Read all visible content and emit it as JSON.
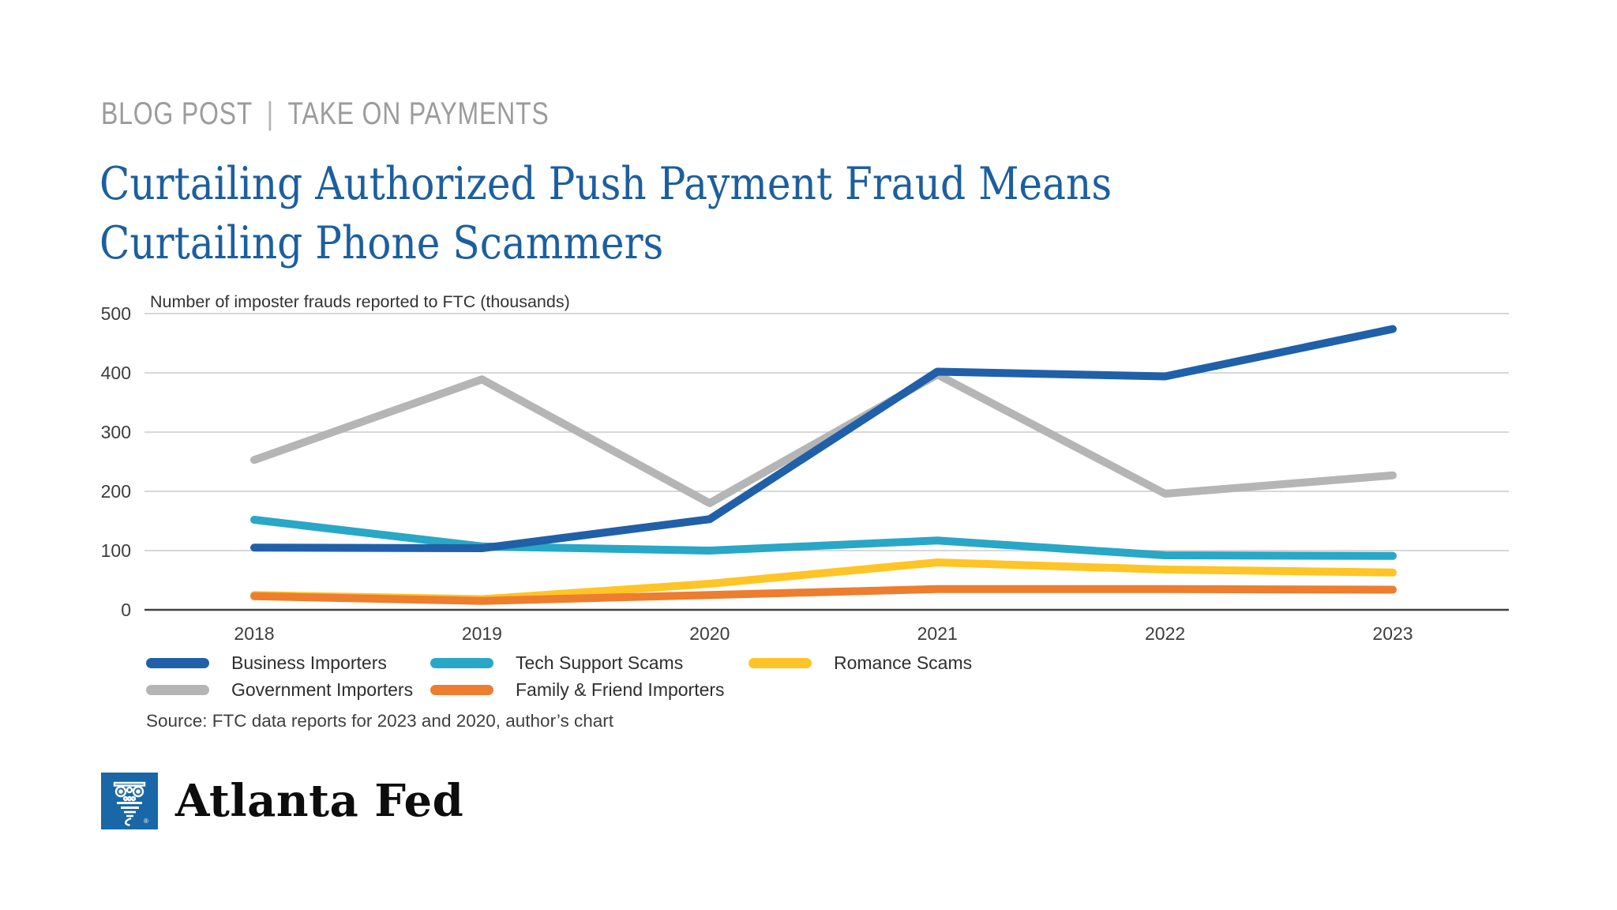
{
  "page": {
    "eyebrow": {
      "left": "BLOG POST",
      "separator": "|",
      "right": "TAKE ON PAYMENTS"
    },
    "title": {
      "line1": "Curtailing Authorized Push Payment Fraud Means",
      "line2": "Curtailing Phone Scammers"
    },
    "source": "Source: FTC data reports for 2023 and 2020, author’s chart",
    "logo": {
      "text": "Atlanta Fed",
      "registered_mark": "®",
      "brand_blue": "#1967a7"
    }
  },
  "chart_data": {
    "type": "line",
    "title": "Number of imposter frauds reported to FTC (thousands)",
    "categories": [
      "2018",
      "2019",
      "2020",
      "2021",
      "2022",
      "2023"
    ],
    "yticks": [
      500,
      400,
      300,
      200,
      100,
      0
    ],
    "ylim": [
      0,
      500
    ],
    "grid": "horizontal",
    "legend_position": "bottom",
    "series": [
      {
        "name": "Government Importers",
        "color": "#b5b5b5",
        "values": [
          253,
          389,
          180,
          397,
          196,
          227
        ]
      },
      {
        "name": "Tech Support Scams",
        "color": "#29a7c6",
        "values": [
          152,
          107,
          100,
          117,
          92,
          91
        ]
      },
      {
        "name": "Romance Scams",
        "color": "#ffc425",
        "values": [
          25,
          18,
          44,
          80,
          68,
          63
        ]
      },
      {
        "name": "Family & Friend Importers",
        "color": "#ed7d2f",
        "values": [
          23,
          15,
          25,
          35,
          35,
          34
        ]
      },
      {
        "name": "Business Importers",
        "color": "#2060a8",
        "values": [
          105,
          104,
          153,
          402,
          394,
          474
        ]
      }
    ]
  }
}
